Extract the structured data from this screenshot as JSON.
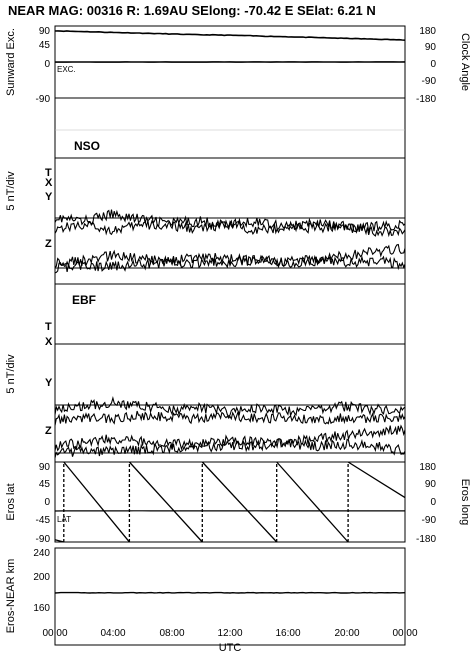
{
  "header": {
    "title": "NEAR MAG: 00316  R: 1.69AU  SElong:  -70.42 E  SElat:    6.21 N"
  },
  "chart_data": [
    {
      "type": "line",
      "panel": "sunward-excursion",
      "ylabel_left": "Sunward Exc.",
      "ylabel_right": "Clock Angle",
      "left_ticks": [
        "90",
        "45",
        "0",
        "-90"
      ],
      "right_ticks": [
        "180",
        "90",
        "0",
        "-90",
        "-180"
      ],
      "inset_label": "EXC.",
      "series": [
        {
          "x": [
            0,
            2,
            4,
            6,
            8,
            10,
            12,
            14,
            16,
            18,
            20,
            22,
            24
          ],
          "values": [
            78,
            76,
            74,
            72,
            70,
            68,
            67,
            65,
            63,
            61,
            59,
            57,
            55
          ]
        },
        {
          "x": [
            0,
            24
          ],
          "values": [
            0,
            0
          ]
        }
      ],
      "ylim": [
        -90,
        90
      ]
    },
    {
      "type": "line",
      "panel": "NSO",
      "plot_label": "NSO",
      "ylabel": "5 nT/div",
      "components": [
        "T",
        "X",
        "Y",
        "Z"
      ],
      "x": [
        0,
        2,
        4,
        6,
        8,
        10,
        12,
        14,
        16,
        18,
        20,
        22,
        24
      ],
      "series": [
        {
          "name": "T",
          "values": [
            2.8,
            2.6,
            3.0,
            2.7,
            2.5,
            2.6,
            2.4,
            2.6,
            2.3,
            2.5,
            2.2,
            2.3,
            2.4
          ]
        },
        {
          "name": "X",
          "values": [
            2.2,
            2.4,
            2.1,
            2.4,
            2.3,
            2.2,
            2.4,
            2.1,
            2.3,
            2.2,
            2.4,
            2.0,
            2.1
          ]
        },
        {
          "name": "Y",
          "values": [
            0.3,
            0.4,
            0.7,
            0.5,
            0.4,
            0.6,
            0.5,
            0.4,
            0.3,
            0.4,
            0.3,
            0.4,
            0.2
          ]
        },
        {
          "name": "Z",
          "values": [
            0.0,
            0.1,
            0.1,
            0.2,
            0.2,
            0.3,
            0.3,
            0.4,
            0.4,
            0.5,
            0.7,
            0.9,
            1.1
          ]
        }
      ]
    },
    {
      "type": "line",
      "panel": "EBF",
      "plot_label": "EBF",
      "ylabel": "5 nT/div",
      "components": [
        "T",
        "X",
        "Y",
        "Z"
      ],
      "x": [
        0,
        2,
        4,
        6,
        8,
        10,
        12,
        14,
        16,
        18,
        20,
        22,
        24
      ],
      "series": [
        {
          "name": "T",
          "values": [
            2.4,
            2.6,
            2.8,
            2.6,
            2.4,
            2.5,
            2.3,
            2.5,
            2.3,
            2.5,
            2.6,
            2.4,
            2.5
          ]
        },
        {
          "name": "X",
          "values": [
            1.8,
            2.0,
            1.9,
            2.1,
            2.0,
            1.9,
            2.1,
            1.9,
            2.0,
            1.8,
            2.0,
            1.9,
            2.0
          ]
        },
        {
          "name": "Y",
          "values": [
            0.4,
            0.6,
            0.8,
            0.6,
            0.5,
            0.5,
            0.7,
            0.6,
            0.5,
            0.4,
            0.5,
            0.4,
            0.1
          ]
        },
        {
          "name": "Z",
          "values": [
            0.0,
            0.1,
            0.1,
            0.2,
            0.3,
            0.3,
            0.4,
            0.4,
            0.6,
            0.8,
            1.0,
            1.2,
            1.3
          ]
        }
      ]
    },
    {
      "type": "line",
      "panel": "eros-position",
      "ylabel_left": "Eros lat",
      "ylabel_right": "Eros long",
      "left_ticks": [
        "90",
        "45",
        "0",
        "-45",
        "-90"
      ],
      "right_ticks": [
        "180",
        "90",
        "0",
        "-90",
        "-180"
      ],
      "inset_label": "LAT",
      "ylim_left": [
        -90,
        90
      ],
      "ylim_right": [
        -180,
        180
      ],
      "longitude": [
        {
          "x": [
            0,
            0.6
          ],
          "values": [
            -170,
            -180
          ]
        },
        {
          "x": [
            0.6,
            0.6
          ],
          "values": [
            -180,
            180
          ]
        },
        {
          "x": [
            0.6,
            5.1
          ],
          "values": [
            180,
            -180
          ]
        },
        {
          "x": [
            5.1,
            5.1
          ],
          "values": [
            -180,
            180
          ]
        },
        {
          "x": [
            5.1,
            10.1
          ],
          "values": [
            180,
            -180
          ]
        },
        {
          "x": [
            10.1,
            10.1
          ],
          "values": [
            -180,
            180
          ]
        },
        {
          "x": [
            10.1,
            15.2
          ],
          "values": [
            180,
            -180
          ]
        },
        {
          "x": [
            15.2,
            15.2
          ],
          "values": [
            -180,
            180
          ]
        },
        {
          "x": [
            15.2,
            20.1
          ],
          "values": [
            180,
            -180
          ]
        },
        {
          "x": [
            20.1,
            20.1
          ],
          "values": [
            -180,
            180
          ]
        },
        {
          "x": [
            20.1,
            24
          ],
          "values": [
            180,
            20
          ]
        }
      ],
      "latitude": {
        "x": [
          0,
          24
        ],
        "values": [
          -20,
          -20
        ]
      }
    },
    {
      "type": "line",
      "panel": "eros-near-distance",
      "ylabel": "Eros-NEAR km",
      "left_ticks": [
        "240",
        "200",
        "160"
      ],
      "ylim": [
        130,
        260
      ],
      "series": [
        {
          "x": [
            0,
            4,
            8,
            12,
            16,
            20,
            24
          ],
          "values": [
            200,
            200,
            200,
            200,
            200,
            200,
            200
          ]
        }
      ]
    }
  ],
  "x_axis": {
    "ticks": [
      "00:00",
      "04:00",
      "08:00",
      "12:00",
      "16:00",
      "20:00",
      "00:00"
    ],
    "label": "UTC"
  }
}
